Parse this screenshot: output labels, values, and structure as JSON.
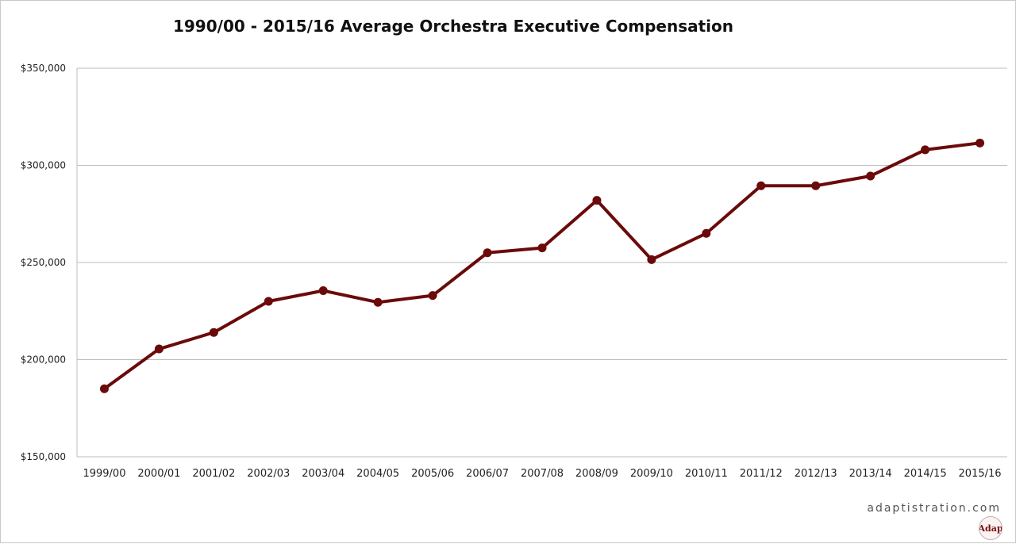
{
  "chart_data": {
    "type": "line",
    "title": "1990/00 - 2015/16 Average Orchestra Executive Compensation",
    "xlabel": "",
    "ylabel": "",
    "categories": [
      "1999/00",
      "2000/01",
      "2001/02",
      "2002/03",
      "2003/04",
      "2004/05",
      "2005/06",
      "2006/07",
      "2007/08",
      "2008/09",
      "2009/10",
      "2010/11",
      "2011/12",
      "2012/13",
      "2013/14",
      "2014/15",
      "2015/16"
    ],
    "series": [
      {
        "name": "",
        "values": [
          185000,
          205500,
          214000,
          230000,
          235500,
          229500,
          233000,
          255000,
          257500,
          282000,
          251500,
          265000,
          289500,
          289500,
          294500,
          308000,
          311500
        ]
      }
    ],
    "ylim": [
      150000,
      350000
    ],
    "yticks": [
      "$150,000",
      "$200,000",
      "$250,000",
      "$300,000",
      "$350,000"
    ],
    "ytick_values": [
      150000,
      200000,
      250000,
      300000,
      350000
    ],
    "grid": true,
    "legend": "none",
    "line_color": "#6b0a0a"
  },
  "footer": {
    "watermark": "adaptistration.com",
    "logo_text": "Adap"
  }
}
